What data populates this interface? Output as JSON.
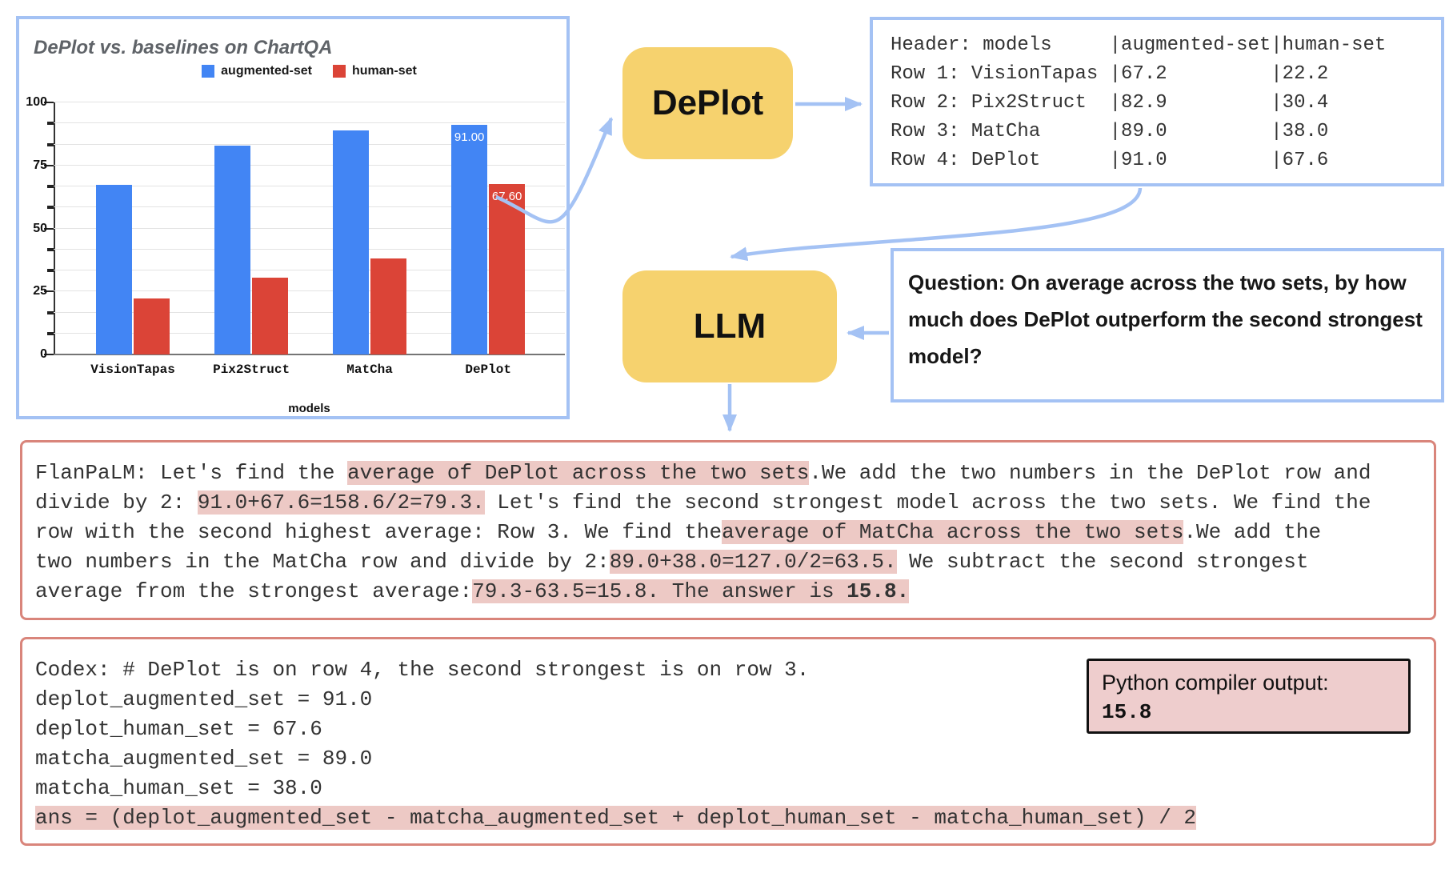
{
  "colors": {
    "accent_blue": "#a4c2f4",
    "bar_blue": "#4285f4",
    "bar_red": "#db4437",
    "box_yellow": "#f6d26e",
    "panel_red_border": "#d9857b",
    "highlight_pink": "#edc9c5",
    "python_box_bg": "#eecdcd"
  },
  "chart_data": {
    "type": "bar",
    "title": "DePlot vs. baselines on ChartQA",
    "categories": [
      "VisionTapas",
      "Pix2Struct",
      "MatCha",
      "DePlot"
    ],
    "series": [
      {
        "name": "augmented-set",
        "color": "#4285f4",
        "values": [
          67.2,
          82.9,
          89.0,
          91.0
        ]
      },
      {
        "name": "human-set",
        "color": "#db4437",
        "values": [
          22.2,
          30.4,
          38.0,
          67.6
        ]
      }
    ],
    "bar_labels": [
      [
        null,
        null
      ],
      [
        null,
        null
      ],
      [
        null,
        null
      ],
      [
        "91.00",
        "67.60"
      ]
    ],
    "xlabel": "models",
    "ylabel": "",
    "ylim": [
      0,
      100
    ],
    "yticks": [
      0,
      25,
      50,
      75,
      100
    ],
    "minor_divisions": 12,
    "grid": true,
    "legend_position": "top"
  },
  "deplot_box": {
    "label": "DePlot"
  },
  "llm_box": {
    "label": "LLM"
  },
  "table_panel": {
    "lines": [
      "Header: models     |augmented-set|human-set",
      "Row 1: VisionTapas |67.2         |22.2",
      "Row 2: Pix2Struct  |82.9         |30.4",
      "Row 3: MatCha      |89.0         |38.0",
      "Row 4: DePlot      |91.0         |67.6"
    ]
  },
  "question_panel": {
    "text": "Question: On average across the two sets, by how much does DePlot outperform the second strongest model?"
  },
  "flanpalm_panel": {
    "lines": [
      [
        {
          "t": "FlanPaLM: Let's find the ",
          "h": false
        },
        {
          "t": "average of DePlot across the two sets",
          "h": true
        },
        {
          "t": ".We add the two numbers in the DePlot row and",
          "h": false
        }
      ],
      [
        {
          "t": "divide by 2: ",
          "h": false
        },
        {
          "t": "91.0+67.6=158.6/2=79.3.",
          "h": true
        },
        {
          "t": " Let's find the second strongest model across the two sets. We find the",
          "h": false
        }
      ],
      [
        {
          "t": "row with the second highest average: Row 3. We find the",
          "h": false
        },
        {
          "t": "average of MatCha across the two sets",
          "h": true
        },
        {
          "t": ".We add the",
          "h": false
        }
      ],
      [
        {
          "t": "two numbers in the MatCha row and divide by 2:",
          "h": false
        },
        {
          "t": "89.0+38.0=127.0/2=63.5.",
          "h": true
        },
        {
          "t": " We subtract the second strongest",
          "h": false
        }
      ],
      [
        {
          "t": "average from the strongest average:",
          "h": false
        },
        {
          "t": "79.3-63.5=15.8. The answer is ",
          "h": true
        },
        {
          "t": "15.8.",
          "h": true,
          "b": true
        }
      ]
    ]
  },
  "codex_panel": {
    "lines": [
      [
        {
          "t": "Codex: # DePlot is on row 4, the second strongest is on row 3.",
          "h": false
        }
      ],
      [
        {
          "t": "deplot_augmented_set = 91.0",
          "h": false
        }
      ],
      [
        {
          "t": "deplot_human_set = 67.6",
          "h": false
        }
      ],
      [
        {
          "t": "matcha_augmented_set = 89.0",
          "h": false
        }
      ],
      [
        {
          "t": "matcha_human_set = 38.0",
          "h": false
        }
      ],
      [
        {
          "t": "ans = (deplot_augmented_set - matcha_augmented_set + deplot_human_set - matcha_human_set) / 2",
          "h": true
        }
      ]
    ]
  },
  "python_output": {
    "label": "Python compiler output:",
    "value": "15.8"
  }
}
